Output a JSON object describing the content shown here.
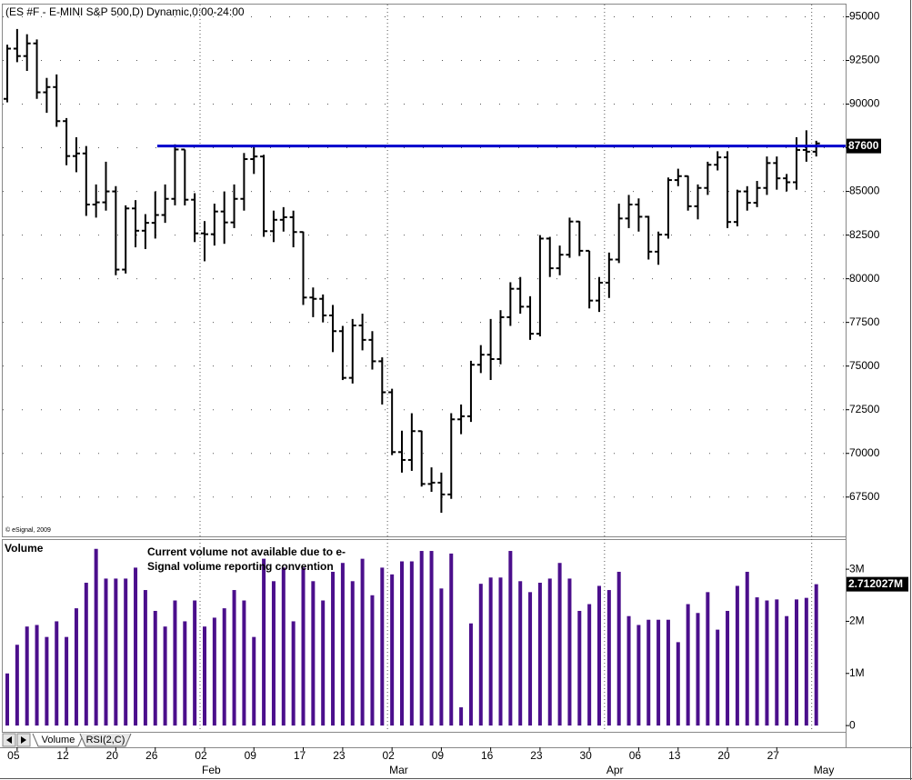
{
  "chart_data": [
    {
      "type": "ohlc",
      "title": "(ES #F - E-MINI S&P 500,D) Dynamic,0:00-24:00",
      "watermark": "© eSignal, 2009",
      "color": "#000000",
      "open": [
        90300,
        93175,
        92750,
        93475,
        90675,
        90975,
        89025,
        87025,
        87175,
        84250,
        84375,
        85000,
        80525,
        84025,
        82750,
        83200,
        83650,
        84575,
        87400,
        84525,
        82600,
        82550,
        83850,
        83225,
        84575,
        86850,
        87000,
        82725,
        83375,
        83525,
        82675,
        78925,
        78850,
        77900,
        77000,
        74325,
        77325,
        76500,
        75275,
        73500,
        70075,
        69625,
        71275,
        68250,
        68325,
        67650,
        71950,
        72125,
        75075,
        75650,
        75400,
        77800,
        79425,
        78400,
        76850,
        82300,
        80600,
        81375,
        83275,
        81600,
        78750,
        79775,
        81100,
        83450,
        84250,
        83550,
        81550,
        82525,
        85650,
        85875,
        84150,
        85200,
        86525,
        86950,
        83250,
        85000,
        84350,
        85200,
        86625,
        85750,
        85525,
        87375,
        87275
      ],
      "high": [
        93400,
        94300,
        94000,
        93700,
        91500,
        91700,
        89200,
        88100,
        87600,
        85400,
        86700,
        85300,
        84200,
        84500,
        83700,
        85000,
        85400,
        87700,
        87400,
        84900,
        83300,
        84300,
        85000,
        85400,
        87200,
        87600,
        87100,
        83900,
        84100,
        83900,
        82700,
        79500,
        79100,
        78500,
        77300,
        77700,
        78000,
        77000,
        75500,
        73700,
        71300,
        72300,
        71300,
        69200,
        68900,
        72300,
        72800,
        75300,
        76200,
        77700,
        78200,
        79800,
        80100,
        79000,
        82500,
        82400,
        81900,
        83500,
        83300,
        81600,
        80100,
        81500,
        84300,
        84800,
        84600,
        83600,
        82700,
        85800,
        86300,
        85900,
        85400,
        86700,
        87300,
        87300,
        85100,
        85300,
        85600,
        87000,
        87000,
        86000,
        88100,
        88500,
        87900
      ],
      "low": [
        90100,
        92400,
        91900,
        90300,
        89500,
        88700,
        86500,
        86100,
        83600,
        83500,
        83900,
        80200,
        80300,
        81800,
        81700,
        82300,
        83200,
        84200,
        84200,
        82100,
        81000,
        81900,
        82000,
        82900,
        83900,
        86000,
        82400,
        82100,
        82700,
        81800,
        78500,
        77800,
        77500,
        75800,
        74200,
        74000,
        75900,
        74800,
        72800,
        69900,
        68900,
        69000,
        68100,
        67800,
        66600,
        67400,
        71100,
        71800,
        74600,
        74200,
        75100,
        77300,
        78000,
        76500,
        76700,
        80100,
        80200,
        81200,
        81300,
        78300,
        78100,
        78900,
        80900,
        82900,
        82700,
        81100,
        80800,
        82300,
        85300,
        83900,
        83400,
        84800,
        86200,
        82900,
        83000,
        83900,
        84100,
        84800,
        85100,
        85000,
        85100,
        86700,
        87000
      ],
      "close": [
        93175,
        92750,
        93475,
        90675,
        90975,
        89025,
        87025,
        87175,
        84250,
        84375,
        85000,
        80525,
        84025,
        82750,
        83200,
        83650,
        84575,
        87400,
        84525,
        82600,
        82550,
        83850,
        83225,
        84575,
        86850,
        87000,
        82725,
        83375,
        83525,
        82675,
        78925,
        78850,
        77900,
        77000,
        74325,
        77325,
        76500,
        75275,
        73500,
        70075,
        69625,
        71275,
        68250,
        68325,
        67650,
        71950,
        72125,
        75075,
        75650,
        75400,
        77800,
        79425,
        78400,
        76850,
        82300,
        80600,
        81375,
        83275,
        81600,
        78750,
        79775,
        81100,
        83450,
        84250,
        83550,
        81550,
        82525,
        85650,
        85875,
        84150,
        85200,
        86525,
        86950,
        83250,
        85000,
        84350,
        85200,
        86625,
        85750,
        85525,
        87375,
        87275,
        87750
      ],
      "ylim": [
        65250,
        95700
      ],
      "yticks": [
        67500,
        70000,
        72500,
        75000,
        77500,
        80000,
        82500,
        85000,
        87500,
        90000,
        92500,
        95000
      ],
      "grid": true,
      "hline": 87600,
      "hline_color": "#0000cc"
    },
    {
      "type": "bar",
      "title": "Volume",
      "title_color": "#5c1a99",
      "annotation": "Current volume not available due to e-Signal volume reporting convention",
      "color": "#4b0f8c",
      "values": [
        1000000,
        1550000,
        1900000,
        1930000,
        1700000,
        2000000,
        1700000,
        2250000,
        2740000,
        3390000,
        2820000,
        2820000,
        2820000,
        3030000,
        2600000,
        2200000,
        1900000,
        2400000,
        2000000,
        2400000,
        1900000,
        2070000,
        2250000,
        2600000,
        2400000,
        1700000,
        3200000,
        2770000,
        3030000,
        2000000,
        3030000,
        2770000,
        2400000,
        2950000,
        3120000,
        2770000,
        3200000,
        2500000,
        3030000,
        2900000,
        3150000,
        3150000,
        3350000,
        3350000,
        2630000,
        3300000,
        350000,
        1960000,
        2720000,
        2840000,
        2840000,
        3350000,
        2770000,
        2560000,
        2740000,
        2820000,
        3120000,
        2820000,
        2200000,
        2330000,
        2680000,
        2600000,
        2950000,
        2100000,
        1930000,
        2030000,
        2030000,
        2030000,
        1600000,
        2330000,
        2160000,
        2560000,
        1840000,
        2200000,
        2680000,
        2950000,
        2460000,
        2400000,
        2420000,
        2100000,
        2420000,
        2450000,
        2712027
      ],
      "last_label": "2.712027M",
      "ylim": [
        -120000,
        3560000
      ],
      "yticks": [
        0,
        {
          "value": 1000000,
          "label": "1M"
        },
        {
          "value": 2000000,
          "label": "2M"
        },
        {
          "value": 3000000,
          "label": "3M"
        }
      ],
      "tabs": [
        "Volume",
        "RSI(2,C)"
      ],
      "categories": [
        null,
        "05",
        null,
        null,
        null,
        null,
        "12",
        null,
        null,
        null,
        null,
        "20",
        null,
        null,
        null,
        "26",
        null,
        null,
        null,
        null,
        "02",
        null,
        null,
        null,
        null,
        "09",
        null,
        null,
        null,
        null,
        "17",
        null,
        null,
        null,
        "23",
        null,
        null,
        null,
        null,
        "02",
        null,
        null,
        null,
        null,
        "09",
        null,
        null,
        null,
        null,
        "16",
        null,
        null,
        null,
        null,
        "23",
        null,
        null,
        null,
        null,
        "30",
        null,
        null,
        null,
        null,
        "06",
        null,
        null,
        null,
        "13",
        null,
        null,
        null,
        null,
        "20",
        null,
        null,
        null,
        null,
        "27",
        null,
        null,
        null,
        null
      ],
      "month_categories": [
        null,
        null,
        null,
        null,
        null,
        null,
        null,
        null,
        null,
        null,
        null,
        null,
        null,
        null,
        null,
        null,
        null,
        null,
        null,
        null,
        "Feb",
        null,
        null,
        null,
        null,
        null,
        null,
        null,
        null,
        null,
        null,
        null,
        null,
        null,
        null,
        null,
        null,
        null,
        null,
        "Mar",
        null,
        null,
        null,
        null,
        null,
        null,
        null,
        null,
        null,
        null,
        null,
        null,
        null,
        null,
        null,
        null,
        null,
        null,
        null,
        null,
        null,
        "Apr",
        null,
        null,
        null,
        null,
        null,
        null,
        null,
        null,
        null,
        null,
        null,
        null,
        null,
        null,
        null,
        null,
        null,
        null,
        null,
        null,
        "May"
      ]
    }
  ]
}
